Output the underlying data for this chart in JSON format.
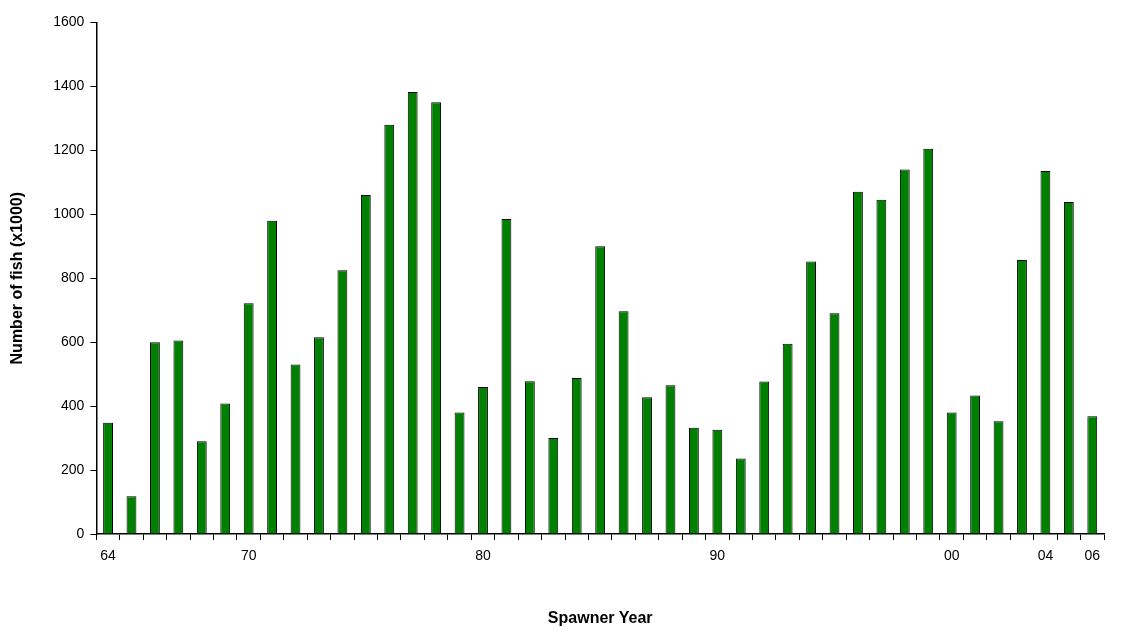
{
  "chart_data": {
    "type": "bar",
    "xlabel": "Spawner Year",
    "ylabel": "Number of fish (x1000)",
    "categories": [
      "64",
      null,
      null,
      null,
      null,
      null,
      "70",
      null,
      null,
      null,
      null,
      null,
      null,
      null,
      null,
      null,
      "80",
      null,
      null,
      null,
      null,
      null,
      null,
      null,
      null,
      null,
      "90",
      null,
      null,
      null,
      null,
      null,
      null,
      null,
      null,
      null,
      "00",
      null,
      null,
      null,
      "04",
      null,
      "06"
    ],
    "values": [
      348,
      118,
      600,
      605,
      290,
      408,
      722,
      980,
      530,
      615,
      825,
      1060,
      1280,
      1382,
      1350,
      380,
      460,
      985,
      478,
      300,
      488,
      900,
      697,
      428,
      465,
      332,
      326,
      236,
      477,
      595,
      852,
      690,
      1070,
      1045,
      1140,
      1205,
      380,
      433,
      353,
      857,
      1135,
      1038,
      368
    ],
    "color": "#008000",
    "ylim": [
      0,
      1600
    ],
    "yticks": [
      0,
      200,
      400,
      600,
      800,
      1000,
      1200,
      1400,
      1600
    ],
    "grid": false,
    "legend": false
  }
}
